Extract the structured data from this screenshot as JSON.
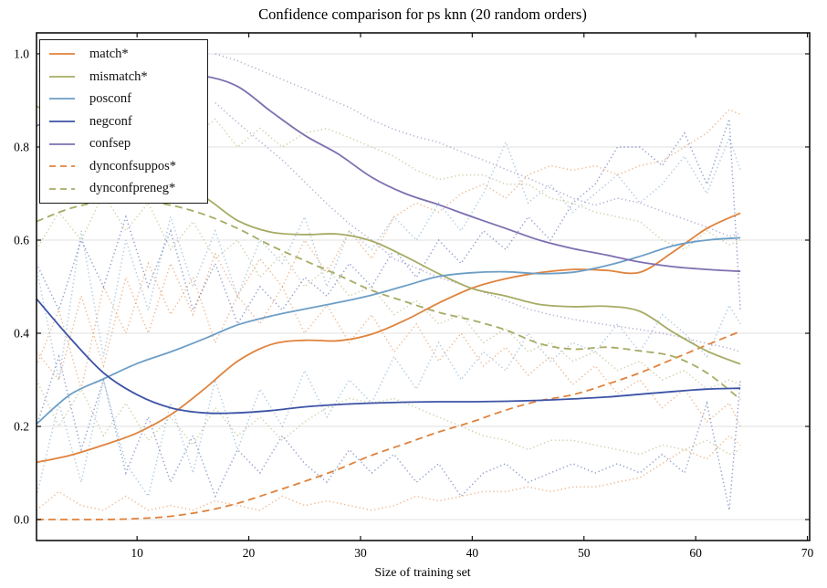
{
  "chart_data": {
    "type": "line",
    "title": "Confidence comparison for ps knn (20 random orders)",
    "xlabel": "Size of training set",
    "ylabel": "",
    "xlim": [
      1,
      70.2
    ],
    "ylim": [
      -0.045,
      1.045
    ],
    "xticks": [
      10,
      20,
      30,
      40,
      50,
      60,
      70
    ],
    "yticks": [
      0.0,
      0.2,
      0.4,
      0.6,
      0.8,
      1.0
    ],
    "grid": "horizontal",
    "legend_position": "upper left",
    "colors": {
      "orange": "#e0823c",
      "olive": "#a7ab64",
      "light_blue": "#6d9ec6",
      "dark_blue": "#3c53a6",
      "purple": "#7e6fb0",
      "grid": "#e2e2e2",
      "axis": "#111111",
      "background": "#ffffff"
    },
    "series": [
      {
        "name": "match*",
        "color": "#e0823c",
        "style": "solid",
        "legend": true,
        "x": [
          1,
          4,
          7,
          10,
          13,
          16,
          19,
          22,
          25,
          28,
          31,
          34,
          37,
          40,
          43,
          46,
          49,
          52,
          55,
          58,
          61,
          64
        ],
        "y": [
          0.123,
          0.138,
          0.16,
          0.186,
          0.225,
          0.28,
          0.34,
          0.376,
          0.385,
          0.384,
          0.398,
          0.428,
          0.465,
          0.497,
          0.517,
          0.53,
          0.537,
          0.535,
          0.531,
          0.575,
          0.625,
          0.658
        ]
      },
      {
        "name": "mismatch*",
        "color": "#a7ab64",
        "style": "solid",
        "legend": true,
        "x": [
          1,
          4,
          7,
          10,
          13,
          16,
          19,
          22,
          25,
          28,
          31,
          34,
          37,
          40,
          43,
          46,
          49,
          52,
          55,
          58,
          61,
          64
        ],
        "y": [
          0.888,
          0.845,
          0.8,
          0.76,
          0.722,
          0.693,
          0.642,
          0.617,
          0.612,
          0.613,
          0.598,
          0.565,
          0.528,
          0.496,
          0.48,
          0.462,
          0.457,
          0.458,
          0.447,
          0.402,
          0.362,
          0.334
        ]
      },
      {
        "name": "posconf",
        "color": "#6d9ec6",
        "style": "solid",
        "legend": true,
        "x": [
          1,
          4,
          7,
          10,
          13,
          16,
          19,
          22,
          25,
          28,
          31,
          34,
          37,
          40,
          43,
          46,
          49,
          52,
          55,
          58,
          61,
          64
        ],
        "y": [
          0.205,
          0.268,
          0.302,
          0.335,
          0.36,
          0.388,
          0.418,
          0.437,
          0.452,
          0.466,
          0.482,
          0.502,
          0.522,
          0.53,
          0.532,
          0.528,
          0.531,
          0.545,
          0.565,
          0.588,
          0.6,
          0.605
        ]
      },
      {
        "name": "negconf",
        "color": "#3c53a6",
        "style": "solid",
        "legend": true,
        "x": [
          1,
          4,
          7,
          10,
          13,
          16,
          19,
          22,
          25,
          28,
          31,
          34,
          37,
          40,
          43,
          46,
          49,
          52,
          55,
          58,
          61,
          64
        ],
        "y": [
          0.474,
          0.39,
          0.315,
          0.268,
          0.24,
          0.229,
          0.229,
          0.234,
          0.242,
          0.247,
          0.25,
          0.252,
          0.253,
          0.253,
          0.254,
          0.256,
          0.259,
          0.263,
          0.269,
          0.275,
          0.28,
          0.282
        ]
      },
      {
        "name": "confsep",
        "color": "#7e6fb0",
        "style": "solid",
        "legend": true,
        "x": [
          1,
          4,
          7,
          10,
          13,
          16,
          19,
          22,
          25,
          28,
          31,
          34,
          37,
          40,
          43,
          46,
          49,
          52,
          55,
          58,
          61,
          64
        ],
        "y": [
          0.845,
          0.882,
          0.915,
          0.94,
          0.952,
          0.952,
          0.93,
          0.876,
          0.825,
          0.785,
          0.735,
          0.7,
          0.676,
          0.65,
          0.625,
          0.6,
          0.582,
          0.568,
          0.553,
          0.543,
          0.537,
          0.533
        ]
      },
      {
        "name": "dynconfsuppos*",
        "color": "#e0823c",
        "style": "dashed",
        "legend": true,
        "x": [
          1,
          4,
          7,
          10,
          13,
          16,
          19,
          22,
          25,
          28,
          31,
          34,
          37,
          40,
          43,
          46,
          49,
          52,
          55,
          58,
          61,
          64
        ],
        "y": [
          0.0,
          0.0,
          0.0,
          0.002,
          0.007,
          0.018,
          0.035,
          0.058,
          0.082,
          0.108,
          0.138,
          0.163,
          0.188,
          0.21,
          0.235,
          0.255,
          0.268,
          0.29,
          0.315,
          0.345,
          0.375,
          0.404
        ]
      },
      {
        "name": "dynconfpreneg*",
        "color": "#a7ab64",
        "style": "dashed",
        "legend": true,
        "x": [
          1,
          4,
          7,
          10,
          13,
          16,
          19,
          22,
          25,
          28,
          31,
          34,
          37,
          40,
          43,
          46,
          49,
          52,
          55,
          58,
          61,
          64
        ],
        "y": [
          0.64,
          0.668,
          0.683,
          0.685,
          0.675,
          0.655,
          0.625,
          0.588,
          0.556,
          0.525,
          0.492,
          0.468,
          0.445,
          0.428,
          0.407,
          0.378,
          0.366,
          0.37,
          0.362,
          0.35,
          0.315,
          0.258
        ]
      }
    ],
    "bands": [
      {
        "name": "match-band-upper",
        "color": "#e0823c",
        "style": "dotted",
        "x": [
          1,
          3,
          5,
          7,
          9,
          11,
          13,
          15,
          17,
          19,
          21,
          23,
          25,
          27,
          29,
          31,
          33,
          35,
          37,
          39,
          41,
          43,
          45,
          47,
          49,
          51,
          53,
          55,
          57,
          59,
          61,
          63,
          64
        ],
        "y": [
          0.36,
          0.3,
          0.48,
          0.33,
          0.52,
          0.4,
          0.55,
          0.44,
          0.57,
          0.48,
          0.56,
          0.5,
          0.6,
          0.53,
          0.62,
          0.56,
          0.65,
          0.68,
          0.66,
          0.7,
          0.72,
          0.69,
          0.74,
          0.76,
          0.75,
          0.76,
          0.74,
          0.76,
          0.77,
          0.8,
          0.83,
          0.88,
          0.87
        ]
      },
      {
        "name": "match-band-lower",
        "color": "#e0823c",
        "style": "dotted",
        "x": [
          1,
          3,
          5,
          7,
          9,
          11,
          13,
          15,
          17,
          19,
          21,
          23,
          25,
          27,
          29,
          31,
          33,
          35,
          37,
          39,
          41,
          43,
          45,
          47,
          49,
          51,
          53,
          55,
          57,
          59,
          61,
          63,
          64
        ],
        "y": [
          0.33,
          0.45,
          0.28,
          0.5,
          0.4,
          0.55,
          0.44,
          0.52,
          0.38,
          0.48,
          0.42,
          0.5,
          0.4,
          0.46,
          0.38,
          0.44,
          0.36,
          0.42,
          0.34,
          0.4,
          0.33,
          0.37,
          0.31,
          0.35,
          0.29,
          0.33,
          0.27,
          0.3,
          0.24,
          0.28,
          0.21,
          0.25,
          0.2
        ]
      },
      {
        "name": "dynconfsuppos-band-lower",
        "color": "#e0823c",
        "style": "dotted",
        "x": [
          1,
          3,
          5,
          7,
          9,
          11,
          13,
          15,
          17,
          19,
          21,
          23,
          25,
          27,
          29,
          31,
          33,
          35,
          37,
          39,
          41,
          43,
          45,
          47,
          49,
          51,
          53,
          55,
          57,
          59,
          61,
          63,
          64
        ],
        "y": [
          0.02,
          0.06,
          0.03,
          0.02,
          0.05,
          0.02,
          0.03,
          0.02,
          0.04,
          0.03,
          0.02,
          0.05,
          0.03,
          0.04,
          0.03,
          0.02,
          0.03,
          0.05,
          0.04,
          0.05,
          0.06,
          0.06,
          0.07,
          0.06,
          0.07,
          0.07,
          0.08,
          0.09,
          0.12,
          0.15,
          0.13,
          0.18,
          0.16
        ]
      },
      {
        "name": "mismatch-band-upper",
        "color": "#a7ab64",
        "style": "dotted",
        "x": [
          1,
          3,
          5,
          7,
          9,
          11,
          13,
          15,
          17,
          19,
          21,
          23,
          25,
          27,
          29,
          31,
          33,
          35,
          37,
          39,
          41,
          43,
          45,
          47,
          49,
          51,
          53,
          55,
          57,
          59,
          61,
          63,
          64
        ],
        "y": [
          0.97,
          0.9,
          0.95,
          0.87,
          0.92,
          0.85,
          0.89,
          0.82,
          0.86,
          0.8,
          0.84,
          0.8,
          0.83,
          0.84,
          0.82,
          0.8,
          0.78,
          0.75,
          0.73,
          0.74,
          0.74,
          0.72,
          0.72,
          0.69,
          0.68,
          0.66,
          0.65,
          0.64,
          0.6,
          0.58,
          0.62,
          0.59,
          0.6
        ]
      },
      {
        "name": "dynconfpreneg-band-mid",
        "color": "#a7ab64",
        "style": "dotted",
        "x": [
          1,
          3,
          5,
          7,
          9,
          11,
          13,
          15,
          17,
          19,
          21,
          23,
          25,
          27,
          29,
          31,
          33,
          35,
          37,
          39,
          41,
          43,
          45,
          47,
          49,
          51,
          53,
          55,
          57,
          59,
          61,
          63,
          64
        ],
        "y": [
          0.58,
          0.66,
          0.6,
          0.7,
          0.62,
          0.68,
          0.58,
          0.64,
          0.56,
          0.6,
          0.52,
          0.57,
          0.5,
          0.54,
          0.48,
          0.5,
          0.44,
          0.47,
          0.42,
          0.44,
          0.38,
          0.41,
          0.36,
          0.38,
          0.34,
          0.36,
          0.32,
          0.34,
          0.3,
          0.32,
          0.28,
          0.3,
          0.29
        ]
      },
      {
        "name": "mismatch-band-lower",
        "color": "#a7ab64",
        "style": "dotted",
        "x": [
          1,
          3,
          5,
          7,
          9,
          11,
          13,
          15,
          17,
          19,
          21,
          23,
          25,
          27,
          29,
          31,
          33,
          35,
          37,
          39,
          41,
          43,
          45,
          47,
          49,
          51,
          53,
          55,
          57,
          59,
          61,
          63,
          64
        ],
        "y": [
          0.3,
          0.2,
          0.28,
          0.18,
          0.25,
          0.17,
          0.22,
          0.16,
          0.24,
          0.18,
          0.22,
          0.17,
          0.21,
          0.24,
          0.26,
          0.25,
          0.26,
          0.24,
          0.22,
          0.2,
          0.18,
          0.17,
          0.15,
          0.17,
          0.17,
          0.16,
          0.15,
          0.14,
          0.16,
          0.15,
          0.17,
          0.14,
          0.15
        ]
      },
      {
        "name": "posconf-band-upper",
        "color": "#6d9ec6",
        "style": "dotted",
        "x": [
          1,
          3,
          5,
          7,
          9,
          11,
          13,
          15,
          17,
          19,
          21,
          23,
          25,
          27,
          29,
          31,
          33,
          35,
          37,
          39,
          41,
          43,
          45,
          47,
          49,
          51,
          53,
          55,
          57,
          59,
          61,
          63,
          64
        ],
        "y": [
          0.54,
          0.3,
          0.62,
          0.35,
          0.6,
          0.45,
          0.65,
          0.5,
          0.62,
          0.48,
          0.6,
          0.55,
          0.65,
          0.5,
          0.62,
          0.58,
          0.65,
          0.6,
          0.68,
          0.62,
          0.7,
          0.81,
          0.68,
          0.72,
          0.66,
          0.7,
          0.74,
          0.68,
          0.72,
          0.78,
          0.7,
          0.82,
          0.75
        ]
      },
      {
        "name": "posconf-band-lower",
        "color": "#6d9ec6",
        "style": "dotted",
        "x": [
          1,
          3,
          5,
          7,
          9,
          11,
          13,
          15,
          17,
          19,
          21,
          23,
          25,
          27,
          29,
          31,
          33,
          35,
          37,
          39,
          41,
          43,
          45,
          47,
          49,
          51,
          53,
          55,
          57,
          59,
          61,
          63,
          64
        ],
        "y": [
          0.05,
          0.25,
          0.08,
          0.3,
          0.12,
          0.05,
          0.25,
          0.1,
          0.3,
          0.15,
          0.28,
          0.2,
          0.32,
          0.22,
          0.3,
          0.25,
          0.35,
          0.28,
          0.38,
          0.3,
          0.36,
          0.32,
          0.4,
          0.34,
          0.38,
          0.36,
          0.42,
          0.36,
          0.44,
          0.4,
          0.35,
          0.46,
          0.42
        ]
      },
      {
        "name": "negconf-band-upper",
        "color": "#3c53a6",
        "style": "dotted",
        "x": [
          1,
          3,
          5,
          7,
          9,
          11,
          13,
          15,
          17,
          19,
          21,
          23,
          25,
          27,
          29,
          31,
          33,
          35,
          37,
          39,
          41,
          43,
          45,
          47,
          49,
          51,
          53,
          55,
          57,
          59,
          61,
          63,
          64
        ],
        "y": [
          0.55,
          0.45,
          0.6,
          0.5,
          0.65,
          0.5,
          0.62,
          0.45,
          0.55,
          0.42,
          0.5,
          0.45,
          0.52,
          0.48,
          0.55,
          0.5,
          0.58,
          0.52,
          0.6,
          0.55,
          0.62,
          0.58,
          0.65,
          0.6,
          0.68,
          0.72,
          0.8,
          0.8,
          0.76,
          0.83,
          0.72,
          0.86,
          0.45
        ]
      },
      {
        "name": "negconf-band-lower",
        "color": "#3c53a6",
        "style": "dotted",
        "x": [
          1,
          3,
          5,
          7,
          9,
          11,
          13,
          15,
          17,
          19,
          21,
          23,
          25,
          27,
          29,
          31,
          33,
          35,
          37,
          39,
          41,
          43,
          45,
          47,
          49,
          51,
          53,
          55,
          57,
          59,
          61,
          63,
          64
        ],
        "y": [
          0.2,
          0.35,
          0.15,
          0.3,
          0.1,
          0.22,
          0.08,
          0.18,
          0.05,
          0.15,
          0.1,
          0.18,
          0.12,
          0.08,
          0.15,
          0.1,
          0.14,
          0.08,
          0.12,
          0.05,
          0.1,
          0.12,
          0.08,
          0.1,
          0.12,
          0.1,
          0.12,
          0.1,
          0.14,
          0.1,
          0.25,
          0.02,
          0.3
        ]
      },
      {
        "name": "confsep-band-upper",
        "color": "#7e6fb0",
        "style": "dotted",
        "x": [
          17,
          19,
          21,
          23,
          25,
          27,
          29,
          31,
          33,
          35,
          37,
          39,
          41,
          43,
          45,
          47,
          49,
          51,
          53,
          55,
          57,
          59,
          61,
          63,
          64
        ],
        "y": [
          1.0,
          0.985,
          0.965,
          0.945,
          0.925,
          0.905,
          0.885,
          0.858,
          0.838,
          0.822,
          0.81,
          0.79,
          0.772,
          0.752,
          0.733,
          0.712,
          0.69,
          0.675,
          0.69,
          0.68,
          0.662,
          0.645,
          0.628,
          0.608,
          0.615
        ]
      },
      {
        "name": "confsep-band-lower",
        "color": "#7e6fb0",
        "style": "dotted",
        "x": [
          17,
          19,
          21,
          23,
          25,
          27,
          29,
          31,
          33,
          35,
          37,
          39,
          41,
          43,
          45,
          47,
          49,
          51,
          53,
          55,
          57,
          59,
          61,
          63,
          64
        ],
        "y": [
          0.895,
          0.852,
          0.812,
          0.772,
          0.725,
          0.678,
          0.635,
          0.6,
          0.56,
          0.54,
          0.52,
          0.505,
          0.488,
          0.47,
          0.452,
          0.44,
          0.43,
          0.422,
          0.415,
          0.408,
          0.4,
          0.39,
          0.378,
          0.368,
          0.36
        ]
      }
    ]
  }
}
